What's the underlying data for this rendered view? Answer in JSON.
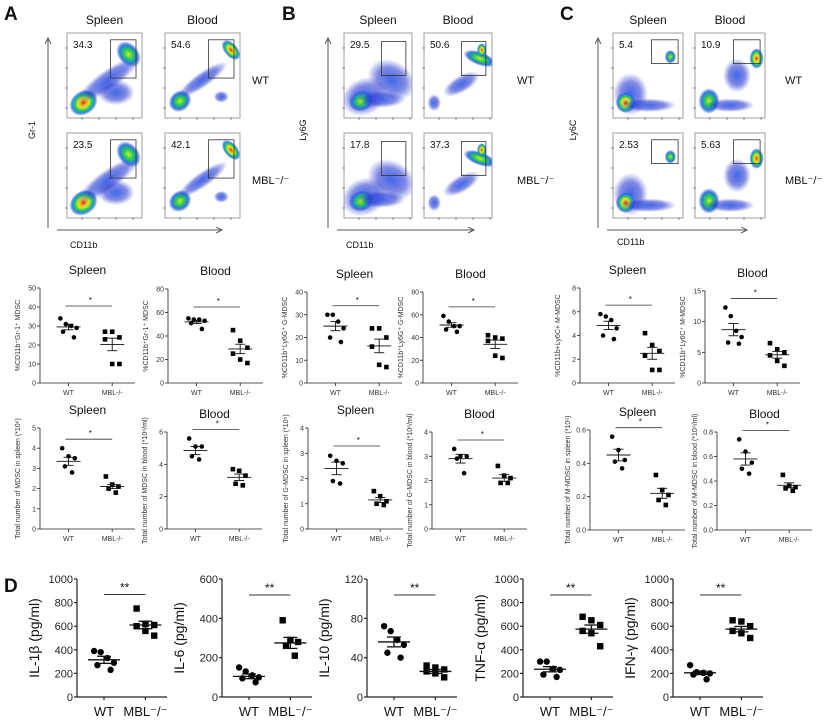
{
  "panels": [
    {
      "label": "A",
      "flow": {
        "col_titles": [
          "Spleen",
          "Blood"
        ],
        "row_labels": [
          "WT",
          "MBL⁻/⁻"
        ],
        "y_marker": "Gr-1",
        "x_marker": "CD11b",
        "gate_percent": [
          [
            "34.3",
            "54.6"
          ],
          [
            "23.5",
            "42.1"
          ]
        ]
      }
    },
    {
      "label": "B",
      "flow": {
        "col_titles": [
          "Spleen",
          "Blood"
        ],
        "row_labels": [
          "WT",
          "MBL⁻/⁻"
        ],
        "y_marker": "Ly6G",
        "x_marker": "CD11b",
        "gate_percent": [
          [
            "29.5",
            "50.6"
          ],
          [
            "17.8",
            "37.3"
          ]
        ]
      }
    },
    {
      "label": "C",
      "flow": {
        "col_titles": [
          "Spleen",
          "Blood"
        ],
        "row_labels": [
          "WT",
          "MBL⁻/⁻"
        ],
        "y_marker": "Ly6C",
        "x_marker": "CD11b",
        "gate_percent": [
          [
            "5.4",
            "10.9"
          ],
          [
            "2.53",
            "5.63"
          ]
        ]
      }
    },
    {
      "label": "D"
    }
  ],
  "colors": {
    "flow_low": "#1a2fd0",
    "flow_mid": "#2bd24a",
    "flow_high": "#f0e020",
    "flow_peak": "#e8201c",
    "markers": "#000000"
  },
  "chart_data": [
    {
      "type": "scatter",
      "panel": "A",
      "title": "Spleen",
      "ylabel": "%CD11b⁺Gr-1⁺ MDSC",
      "ylim": [
        0,
        50
      ],
      "yticks": [
        0,
        10,
        20,
        30,
        40,
        50
      ],
      "categories": [
        "WT",
        "MBL-/-"
      ],
      "significance": "*",
      "groups": [
        {
          "category": "WT",
          "marker": "circle",
          "values": [
            34,
            31,
            30,
            29,
            27,
            24
          ],
          "mean": 29.5,
          "sem": 1.5
        },
        {
          "category": "MBL-/-",
          "marker": "square",
          "values": [
            27,
            27,
            24,
            23,
            10,
            10
          ],
          "mean": 20.3,
          "sem": 3.3
        }
      ]
    },
    {
      "type": "scatter",
      "panel": "A",
      "title": "Blood",
      "ylabel": "%CD11b⁺Gr-1⁺ MDSC",
      "ylim": [
        0,
        80
      ],
      "yticks": [
        0,
        20,
        40,
        60,
        80
      ],
      "categories": [
        "WT",
        "MBL-/-"
      ],
      "significance": "*",
      "groups": [
        {
          "category": "WT",
          "marker": "circle",
          "values": [
            55,
            54,
            54,
            53,
            51,
            46
          ],
          "mean": 52,
          "sem": 1.3
        },
        {
          "category": "MBL-/-",
          "marker": "square",
          "values": [
            45,
            36,
            30,
            25,
            20,
            17
          ],
          "mean": 29,
          "sem": 4
        }
      ]
    },
    {
      "type": "scatter",
      "panel": "A",
      "title": "Spleen",
      "ylabel": "Total number of MDSC in spleen (*10⁶)",
      "ylim": [
        0,
        5
      ],
      "yticks": [
        0,
        1,
        2,
        3,
        4,
        5
      ],
      "categories": [
        "WT",
        "MBL-/-"
      ],
      "significance": "*",
      "groups": [
        {
          "category": "WT",
          "marker": "circle",
          "values": [
            4.0,
            3.6,
            3.5,
            3.1,
            2.8
          ],
          "mean": 3.35,
          "sem": 0.2
        },
        {
          "category": "MBL-/-",
          "marker": "square",
          "values": [
            2.6,
            2.2,
            2.1,
            2.0,
            1.8
          ],
          "mean": 2.1,
          "sem": 0.1
        }
      ]
    },
    {
      "type": "scatter",
      "panel": "A",
      "title": "Blood",
      "ylabel": "Total number of MDSC in blood (*10⁶/ml)",
      "ylim": [
        0,
        6
      ],
      "yticks": [
        0,
        2,
        4,
        6
      ],
      "categories": [
        "WT",
        "MBL-/-"
      ],
      "significance": "*",
      "groups": [
        {
          "category": "WT",
          "marker": "circle",
          "values": [
            5.6,
            5.1,
            5.1,
            4.5,
            4.3
          ],
          "mean": 4.85,
          "sem": 0.25
        },
        {
          "category": "MBL-/-",
          "marker": "square",
          "values": [
            3.7,
            3.6,
            3.3,
            2.8,
            2.7
          ],
          "mean": 3.2,
          "sem": 0.2
        }
      ]
    },
    {
      "type": "scatter",
      "panel": "B",
      "title": "Spleen",
      "ylabel": "%CD11b⁺Ly6G⁺ G-MDSC",
      "ylim": [
        0,
        40
      ],
      "yticks": [
        0,
        10,
        20,
        30,
        40
      ],
      "categories": [
        "WT",
        "MBL-/-"
      ],
      "significance": "*",
      "groups": [
        {
          "category": "WT",
          "marker": "circle",
          "values": [
            30,
            30,
            27,
            24,
            20,
            18
          ],
          "mean": 25,
          "sem": 2
        },
        {
          "category": "MBL-/-",
          "marker": "square",
          "values": [
            24,
            24,
            20,
            16,
            8,
            7
          ],
          "mean": 16.3,
          "sem": 3
        }
      ]
    },
    {
      "type": "scatter",
      "panel": "B",
      "title": "Blood",
      "ylabel": "%CD11b⁺Ly6G⁺ G-MDSC",
      "ylim": [
        0,
        80
      ],
      "yticks": [
        0,
        20,
        40,
        60,
        80
      ],
      "categories": [
        "WT",
        "MBL-/-"
      ],
      "significance": "*",
      "groups": [
        {
          "category": "WT",
          "marker": "circle",
          "values": [
            59,
            54,
            50,
            50,
            47,
            45
          ],
          "mean": 51,
          "sem": 2
        },
        {
          "category": "MBL-/-",
          "marker": "square",
          "values": [
            42,
            40,
            39,
            37,
            24,
            22
          ],
          "mean": 34,
          "sem": 3.7
        }
      ]
    },
    {
      "type": "scatter",
      "panel": "B",
      "title": "Spleen",
      "ylabel": "Total number of G-MDSC in spleen (*10⁶)",
      "ylim": [
        0,
        4
      ],
      "yticks": [
        0,
        1,
        2,
        3,
        4
      ],
      "categories": [
        "WT",
        "MBL-/-"
      ],
      "significance": "*",
      "groups": [
        {
          "category": "WT",
          "marker": "circle",
          "values": [
            2.9,
            2.7,
            2.6,
            1.9,
            1.8
          ],
          "mean": 2.4,
          "sem": 0.25
        },
        {
          "category": "MBL-/-",
          "marker": "square",
          "values": [
            1.5,
            1.3,
            1.1,
            1.0,
            0.95
          ],
          "mean": 1.15,
          "sem": 0.1
        }
      ]
    },
    {
      "type": "scatter",
      "panel": "B",
      "title": "Blood",
      "ylabel": "Total number of G-MDSC in blood (*10⁶/ml)",
      "ylim": [
        0,
        4
      ],
      "yticks": [
        0,
        1,
        2,
        3,
        4
      ],
      "categories": [
        "WT",
        "MBL-/-"
      ],
      "significance": "*",
      "groups": [
        {
          "category": "WT",
          "marker": "circle",
          "values": [
            3.3,
            3.0,
            3.0,
            2.9,
            2.3
          ],
          "mean": 2.9,
          "sem": 0.18
        },
        {
          "category": "MBL-/-",
          "marker": "square",
          "values": [
            2.6,
            2.2,
            2.1,
            1.9,
            1.9
          ],
          "mean": 2.1,
          "sem": 0.14
        }
      ]
    },
    {
      "type": "scatter",
      "panel": "C",
      "title": "Spleen",
      "ylabel": "%CD11b+Ly6C+ M-MDSC",
      "ylim": [
        0,
        8
      ],
      "yticks": [
        0,
        2,
        4,
        6,
        8
      ],
      "categories": [
        "WT",
        "MBL-/-"
      ],
      "significance": "*",
      "groups": [
        {
          "category": "WT",
          "marker": "circle",
          "values": [
            5.8,
            5.6,
            5.3,
            4.6,
            4.0,
            3.7
          ],
          "mean": 4.85,
          "sem": 0.35
        },
        {
          "category": "MBL-/-",
          "marker": "square",
          "values": [
            4.2,
            3.2,
            2.7,
            2.3,
            1.1,
            1.1
          ],
          "mean": 2.5,
          "sem": 0.5
        }
      ]
    },
    {
      "type": "scatter",
      "panel": "C",
      "title": "Blood",
      "ylabel": "%CD11b⁺Ly6C⁺ M-MDSC",
      "ylim": [
        0,
        15
      ],
      "yticks": [
        0,
        5,
        10,
        15
      ],
      "categories": [
        "WT",
        "MBL-/-"
      ],
      "significance": "*",
      "groups": [
        {
          "category": "WT",
          "marker": "circle",
          "values": [
            12.3,
            10.9,
            8.5,
            7.5,
            6.6,
            6.4
          ],
          "mean": 8.7,
          "sem": 1
        },
        {
          "category": "MBL-/-",
          "marker": "square",
          "values": [
            6.5,
            5.5,
            5.0,
            4.5,
            3.6,
            2.8
          ],
          "mean": 4.6,
          "sem": 0.55
        }
      ]
    },
    {
      "type": "scatter",
      "panel": "C",
      "title": "Spleen",
      "ylabel": "Total number of M-MDSC in spleen (*10⁶)",
      "ylim": [
        0,
        0.6
      ],
      "yticks": [
        0,
        0.2,
        0.4,
        0.6
      ],
      "ytick_labels": [
        "0.0",
        "0.2",
        "0.4",
        "0.6"
      ],
      "categories": [
        "WT",
        "MBL-/-"
      ],
      "significance": "*",
      "groups": [
        {
          "category": "WT",
          "marker": "circle",
          "values": [
            0.56,
            0.48,
            0.42,
            0.41,
            0.37
          ],
          "mean": 0.45,
          "sem": 0.035
        },
        {
          "category": "MBL-/-",
          "marker": "square",
          "values": [
            0.33,
            0.24,
            0.21,
            0.18,
            0.15
          ],
          "mean": 0.22,
          "sem": 0.03
        }
      ]
    },
    {
      "type": "scatter",
      "panel": "C",
      "title": "Blood",
      "ylabel": "Total number of M-MDSC in blood (*10⁶/ml)",
      "ylim": [
        0,
        0.8
      ],
      "yticks": [
        0,
        0.2,
        0.4,
        0.6,
        0.8
      ],
      "ytick_labels": [
        "0.0",
        "0.2",
        "0.4",
        "0.6",
        "0.8"
      ],
      "categories": [
        "WT",
        "MBL-/-"
      ],
      "significance": "*",
      "groups": [
        {
          "category": "WT",
          "marker": "circle",
          "values": [
            0.74,
            0.64,
            0.55,
            0.5,
            0.46
          ],
          "mean": 0.58,
          "sem": 0.05
        },
        {
          "category": "MBL-/-",
          "marker": "square",
          "values": [
            0.45,
            0.36,
            0.35,
            0.34,
            0.32
          ],
          "mean": 0.365,
          "sem": 0.02
        }
      ]
    },
    {
      "type": "scatter",
      "panel": "D",
      "title": "",
      "ylabel": "IL-1β (pg/ml)",
      "ylim": [
        0,
        1000
      ],
      "yticks": [
        0,
        200,
        400,
        600,
        800,
        1000
      ],
      "categories": [
        "WT",
        "MBL⁻/⁻"
      ],
      "significance": "**",
      "groups": [
        {
          "category": "WT",
          "marker": "circle",
          "values": [
            390,
            380,
            330,
            290,
            270,
            230
          ],
          "mean": 315,
          "sem": 30
        },
        {
          "category": "MBL⁻/⁻",
          "marker": "square",
          "values": [
            750,
            620,
            610,
            600,
            560,
            520
          ],
          "mean": 610,
          "sem": 32
        }
      ]
    },
    {
      "type": "scatter",
      "panel": "D",
      "title": "",
      "ylabel": "IL-6 (pg/ml)",
      "ylim": [
        0,
        600
      ],
      "yticks": [
        0,
        200,
        400,
        600
      ],
      "categories": [
        "WT",
        "MBL⁻/⁻"
      ],
      "significance": "**",
      "groups": [
        {
          "category": "WT",
          "marker": "circle",
          "values": [
            150,
            130,
            110,
            100,
            95,
            75
          ],
          "mean": 105,
          "sem": 12
        },
        {
          "category": "MBL⁻/⁻",
          "marker": "square",
          "values": [
            390,
            290,
            280,
            260,
            210
          ],
          "mean": 275,
          "sem": 28
        }
      ]
    },
    {
      "type": "scatter",
      "panel": "D",
      "title": "",
      "ylabel": "IL-10 (pg/ml)",
      "ylim": [
        0,
        120
      ],
      "yticks": [
        0,
        40,
        80,
        120
      ],
      "categories": [
        "WT",
        "MBL⁻/⁻"
      ],
      "significance": "**",
      "groups": [
        {
          "category": "WT",
          "marker": "circle",
          "values": [
            72,
            67,
            58,
            53,
            45,
            40
          ],
          "mean": 56,
          "sem": 5
        },
        {
          "category": "MBL⁻/⁻",
          "marker": "square",
          "values": [
            32,
            30,
            28,
            26,
            24,
            20
          ],
          "mean": 26,
          "sem": 2
        }
      ]
    },
    {
      "type": "scatter",
      "panel": "D",
      "title": "",
      "ylabel": "TNF-α (pg/ml)",
      "ylim": [
        0,
        1000
      ],
      "yticks": [
        0,
        200,
        400,
        600,
        800,
        1000
      ],
      "categories": [
        "WT",
        "MBL⁻/⁻"
      ],
      "significance": "**",
      "groups": [
        {
          "category": "WT",
          "marker": "circle",
          "values": [
            300,
            300,
            240,
            230,
            190,
            170
          ],
          "mean": 235,
          "sem": 22
        },
        {
          "category": "MBL⁻/⁻",
          "marker": "square",
          "values": [
            680,
            650,
            610,
            560,
            540,
            430
          ],
          "mean": 575,
          "sem": 35
        }
      ]
    },
    {
      "type": "scatter",
      "panel": "D",
      "title": "",
      "ylabel": "IFN-γ  (pg/ml)",
      "ylim": [
        0,
        1000
      ],
      "yticks": [
        0,
        200,
        400,
        600,
        800,
        1000
      ],
      "categories": [
        "WT",
        "MBL⁻/⁻"
      ],
      "significance": "**",
      "groups": [
        {
          "category": "WT",
          "marker": "circle",
          "values": [
            270,
            210,
            205,
            200,
            190,
            150
          ],
          "mean": 205,
          "sem": 15
        },
        {
          "category": "MBL⁻/⁻",
          "marker": "square",
          "values": [
            650,
            640,
            600,
            560,
            540,
            500
          ],
          "mean": 575,
          "sem": 23
        }
      ]
    }
  ]
}
